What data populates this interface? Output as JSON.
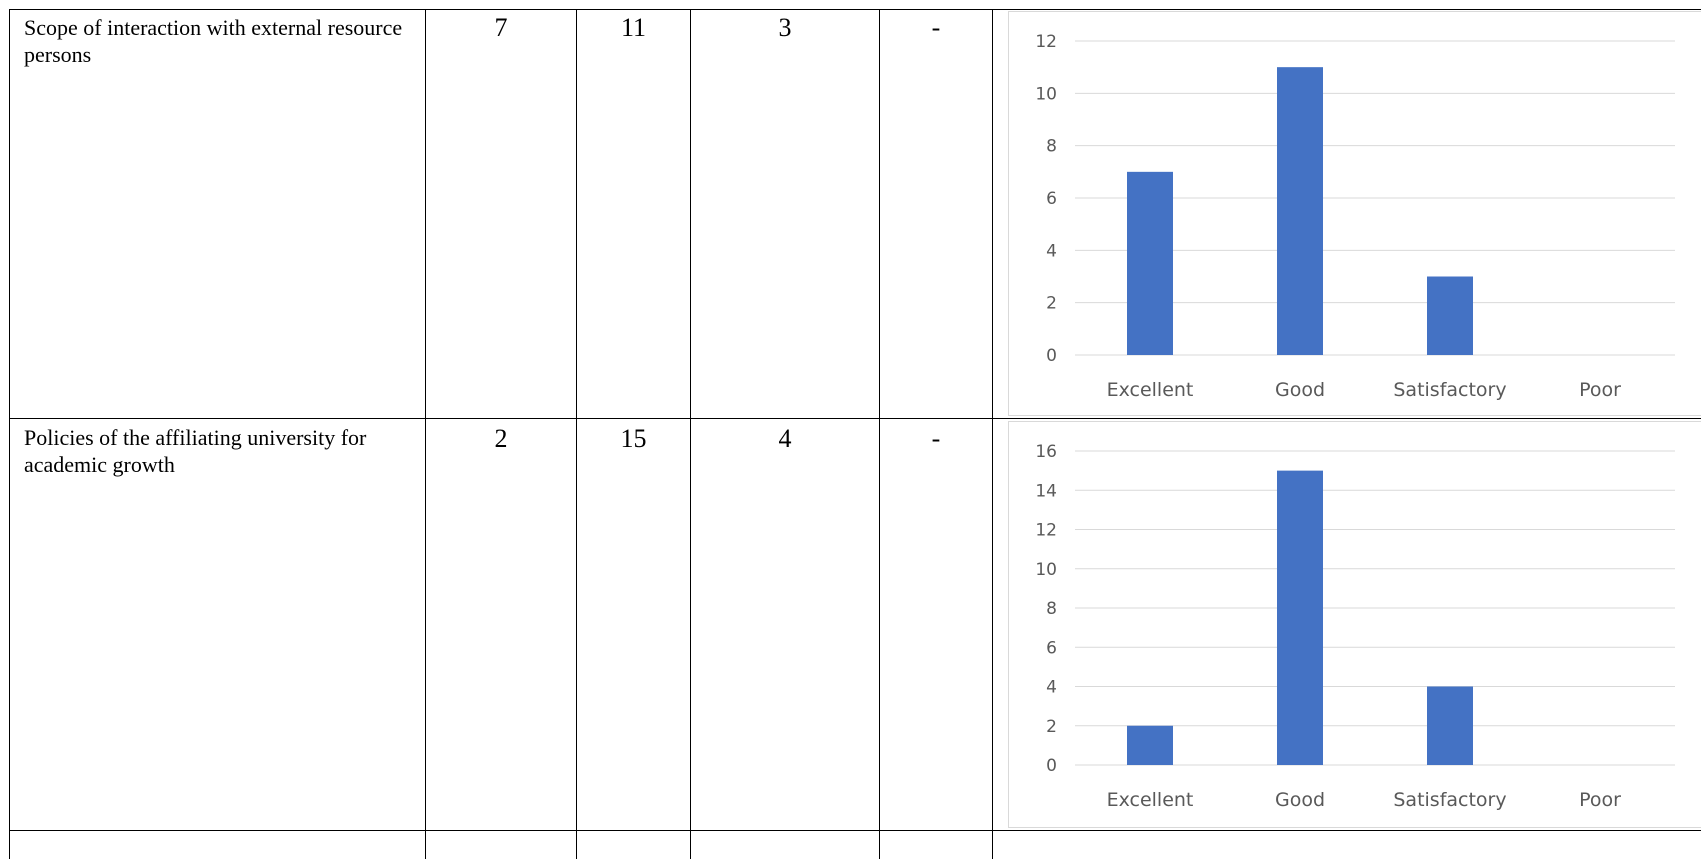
{
  "rows": [
    {
      "criterion": "Scope of interaction with external resource persons",
      "excellent": "7",
      "good": "11",
      "satisfactory": "3",
      "poor": "-"
    },
    {
      "criterion": "Policies of the affiliating university for academic growth",
      "excellent": "2",
      "good": "15",
      "satisfactory": "4",
      "poor": "-"
    }
  ],
  "chart_data": [
    {
      "type": "bar",
      "categories": [
        "Excellent",
        "Good",
        "Satisfactory",
        "Poor"
      ],
      "values": [
        7,
        11,
        3,
        0
      ],
      "ylim": [
        0,
        12
      ],
      "yticks": [
        "0",
        "2",
        "4",
        "6",
        "8",
        "10",
        "12"
      ],
      "bar_color": "#4472c4",
      "grid": true
    },
    {
      "type": "bar",
      "categories": [
        "Excellent",
        "Good",
        "Satisfactory",
        "Poor"
      ],
      "values": [
        2,
        15,
        4,
        0
      ],
      "ylim": [
        0,
        16
      ],
      "yticks": [
        "0",
        "2",
        "4",
        "6",
        "8",
        "10",
        "12",
        "14",
        "16"
      ],
      "bar_color": "#4472c4",
      "grid": true
    }
  ]
}
